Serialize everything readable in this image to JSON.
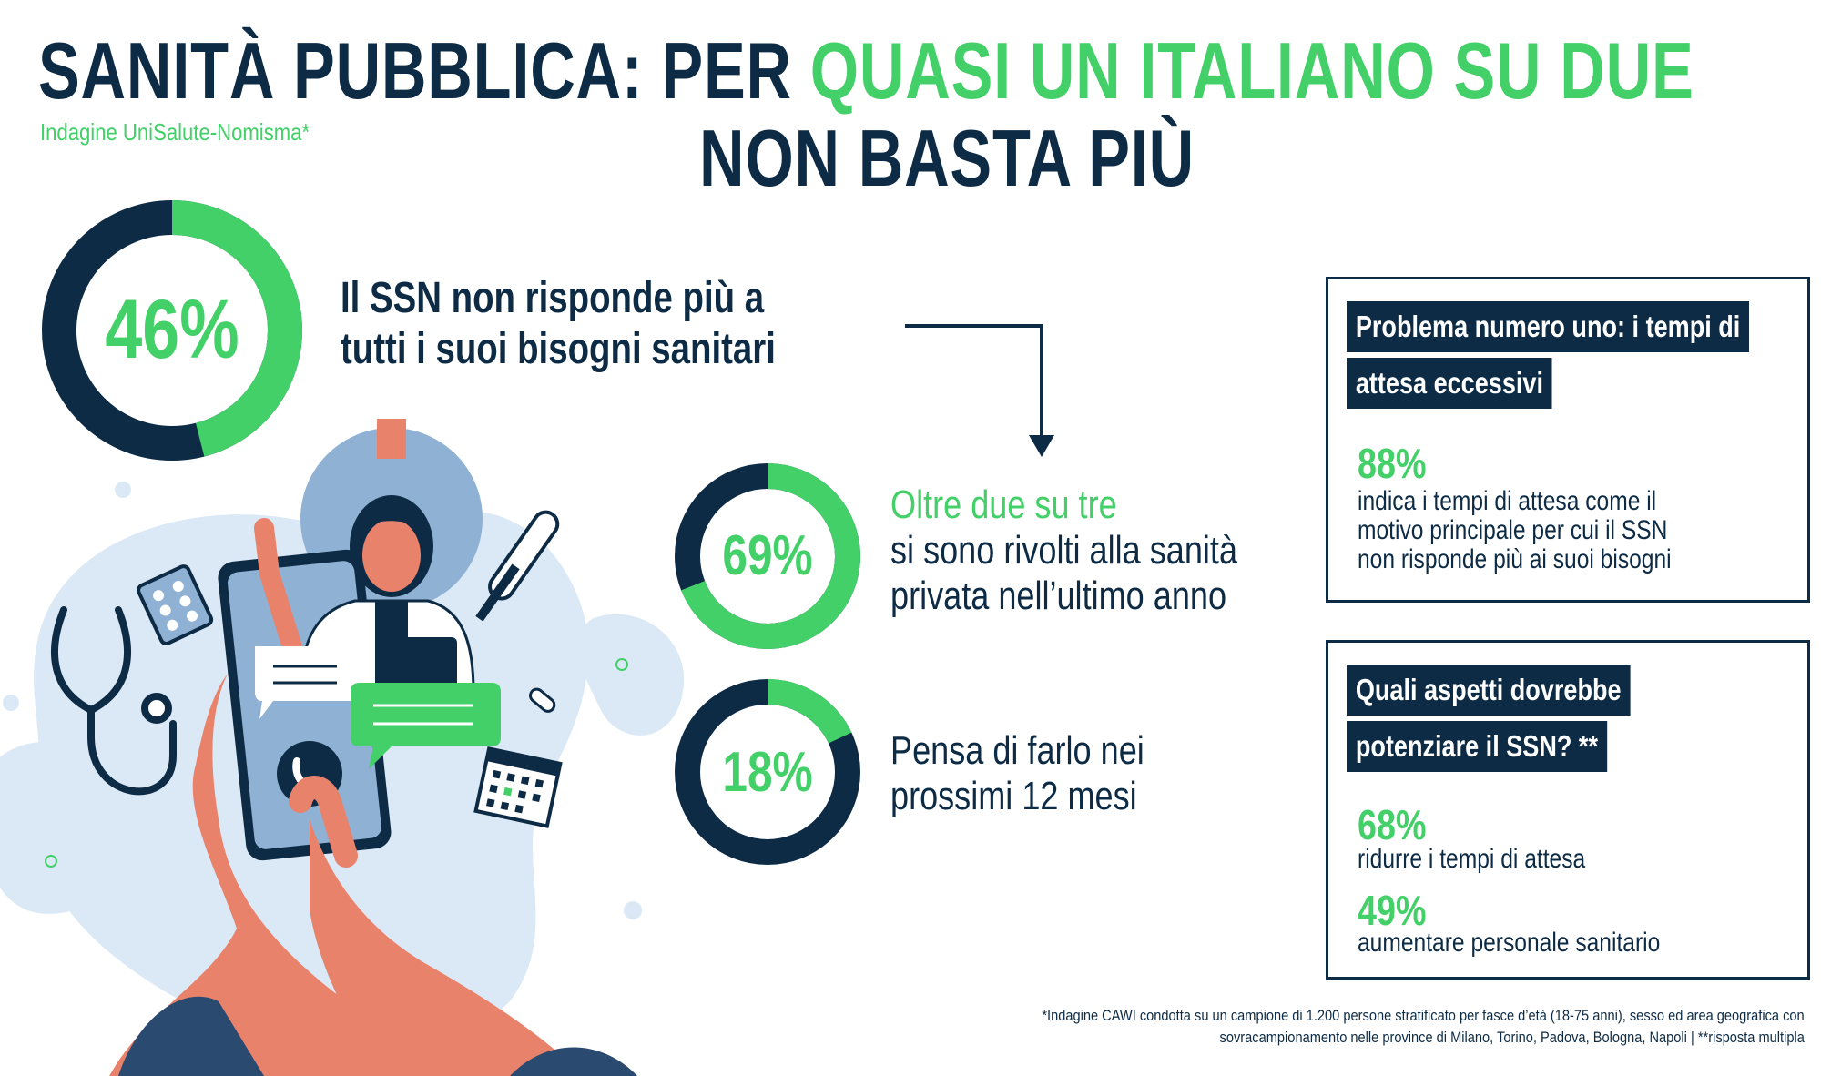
{
  "header": {
    "title_part1": "SANITÀ PUBBLICA: PER ",
    "title_highlight": "QUASI UN ITALIANO SU DUE",
    "title_line2": "NON BASTA PIÙ",
    "subtitle": "Indagine UniSalute-Nomisma*"
  },
  "colors": {
    "navy": "#0d2b45",
    "green": "#44d068",
    "light_blue": "#dbe9f7",
    "skin": "#e9826a"
  },
  "stat_main": {
    "label": "46%",
    "line1": "Il SSN non risponde più a",
    "line2": "tutti i suoi bisogni sanitari"
  },
  "stat_69": {
    "label": "69%",
    "line1": "Oltre due su tre",
    "line2": "si sono rivolti alla sanità",
    "line3": "privata nell’ultimo anno"
  },
  "stat_18": {
    "label": "18%",
    "line1": "Pensa di farlo nei",
    "line2": "prossimi 12 mesi"
  },
  "box1": {
    "tag_line1": "Problema numero uno: i tempi di",
    "tag_line2": "attesa eccessivi",
    "pct": "88%",
    "text1": "indica i tempi di attesa come il",
    "text2": "motivo principale per cui il SSN",
    "text3": "non risponde più ai suoi bisogni"
  },
  "box2": {
    "tag_line1": "Quali aspetti dovrebbe",
    "tag_line2": "potenziare il SSN? **",
    "pct1": "68%",
    "text1": "ridurre i tempi di attesa",
    "pct2": "49%",
    "text2": "aumentare personale sanitario"
  },
  "footnote": {
    "line1": "*Indagine CAWI condotta su un campione di 1.200 persone stratificato per fasce d’età (18-75 anni), sesso ed area geografica con",
    "line2": "sovracampionamento nelle province di Milano, Torino, Padova, Bologna, Napoli  |  **risposta multipla"
  },
  "illustration_icons": [
    "doctor-icon",
    "smartphone-icon",
    "stethoscope-icon",
    "thermometer-icon",
    "pills-icon",
    "calendar-icon",
    "phone-icon",
    "chat-bubble-icon"
  ],
  "chart_data": [
    {
      "type": "pie",
      "variant": "donut",
      "label": "46%",
      "values": [
        46,
        54
      ],
      "colors": [
        "#44d068",
        "#0d2b45"
      ]
    },
    {
      "type": "pie",
      "variant": "donut",
      "label": "69%",
      "values": [
        69,
        31
      ],
      "colors": [
        "#44d068",
        "#0d2b45"
      ]
    },
    {
      "type": "pie",
      "variant": "donut",
      "label": "18%",
      "values": [
        18,
        82
      ],
      "colors": [
        "#44d068",
        "#0d2b45"
      ]
    }
  ]
}
